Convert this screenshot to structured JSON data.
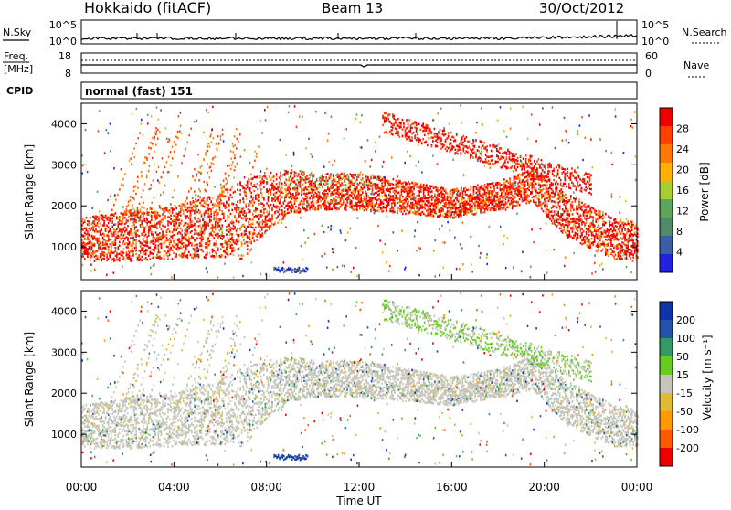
{
  "header": {
    "station": "Hokkaido (fitACF)",
    "beam": "Beam 13",
    "date": "30/Oct/2012"
  },
  "noise_panel": {
    "left_label": "N.Sky",
    "right_label": "N.Search",
    "left_ticks": [
      "10^5",
      "10^0"
    ],
    "right_ticks": [
      "10^5",
      "10^0"
    ]
  },
  "freq_panel": {
    "left_label_top": "Freq.",
    "left_label_bottom": "[MHz]",
    "left_ticks": [
      "18",
      "8"
    ],
    "right_label": "Nave",
    "right_ticks": [
      "60",
      "0"
    ]
  },
  "cpid_panel": {
    "label": "CPID",
    "value": "normal (fast) 151"
  },
  "colors": {
    "power": [
      "#2222dd",
      "#3b5fa6",
      "#4f8a6a",
      "#5fa65a",
      "#aacc33",
      "#ffb000",
      "#ff7a00",
      "#ff4000",
      "#ee0000"
    ],
    "velocity": [
      "#ee0000",
      "#ff5a00",
      "#ff9900",
      "#ddbb33",
      "#c4c4b8",
      "#66cc22",
      "#339966",
      "#2255aa",
      "#1133aa"
    ],
    "velocity_gray": "#c4c4b8"
  },
  "chart_data": [
    {
      "type": "heatmap",
      "name": "power",
      "xlabel": "",
      "ylabel": "Slant Range [km]",
      "xlim": [
        0,
        24
      ],
      "ylim": [
        200,
        4500
      ],
      "y_ticks": [
        "1000",
        "2000",
        "3000",
        "4000"
      ],
      "colorbar": {
        "label": "Power [dB]",
        "ticks": [
          "4",
          "8",
          "12",
          "16",
          "20",
          "24",
          "28"
        ],
        "range": [
          0,
          30
        ]
      },
      "scatter_bands": [
        {
          "t": 0.0,
          "lower": 650,
          "upper": 1700
        },
        {
          "t": 2.0,
          "lower": 650,
          "upper": 1900
        },
        {
          "t": 4.0,
          "lower": 700,
          "upper": 2000
        },
        {
          "t": 6.0,
          "lower": 750,
          "upper": 2300
        },
        {
          "t": 7.0,
          "lower": 700,
          "upper": 2700
        },
        {
          "t": 8.0,
          "lower": 1400,
          "upper": 2800
        },
        {
          "t": 9.0,
          "lower": 1800,
          "upper": 2900
        },
        {
          "t": 10.0,
          "lower": 1900,
          "upper": 2800
        },
        {
          "t": 12.0,
          "lower": 1900,
          "upper": 2800
        },
        {
          "t": 14.0,
          "lower": 1800,
          "upper": 2600
        },
        {
          "t": 16.0,
          "lower": 1700,
          "upper": 2400
        },
        {
          "t": 18.0,
          "lower": 1900,
          "upper": 2600
        },
        {
          "t": 19.5,
          "lower": 2100,
          "upper": 2900
        },
        {
          "t": 21.0,
          "lower": 1200,
          "upper": 2300
        },
        {
          "t": 23.0,
          "lower": 700,
          "upper": 1700
        },
        {
          "t": 24.0,
          "lower": 700,
          "upper": 1600
        }
      ]
    },
    {
      "type": "heatmap",
      "name": "velocity",
      "xlabel": "Time UT",
      "ylabel": "Slant Range [km]",
      "xlim": [
        0,
        24
      ],
      "ylim": [
        200,
        4500
      ],
      "x_ticks": [
        "00:00",
        "04:00",
        "08:00",
        "12:00",
        "16:00",
        "20:00",
        "00:00"
      ],
      "y_ticks": [
        "1000",
        "2000",
        "3000",
        "4000"
      ],
      "colorbar": {
        "label": "Velocity [m s⁻¹]",
        "ticks": [
          "200",
          "100",
          "50",
          "15",
          "-15",
          "-50",
          "-100",
          "-200"
        ],
        "range": [
          -250,
          250
        ]
      }
    }
  ]
}
